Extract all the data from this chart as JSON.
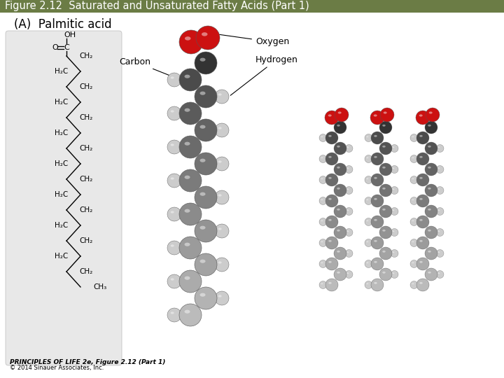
{
  "title": "Figure 2.12  Saturated and Unsaturated Fatty Acids (Part 1)",
  "title_bg_color": "#6b7c45",
  "title_text_color": "#ffffff",
  "title_fontsize": 10.5,
  "bg_color": "#ffffff",
  "panel_bg_color": "#e8e8e8",
  "subtitle": "(A)  Palmitic acid",
  "subtitle_fontsize": 12,
  "footer_bold": "PRINCIPLES OF LIFE 2e, Figure 2.12 (Part 1)",
  "footer_copy": "© 2014 Sinauer Associates, Inc.",
  "footer_fontsize": 7,
  "carbon_gray": "#aaaaaa",
  "carbon_dark": "#333333",
  "hydrogen_color": "#cccccc",
  "oxygen_color": "#cc1111",
  "label_oxygen": "Oxygen",
  "label_carbon": "Carbon",
  "label_hydrogen": "Hydrogen"
}
